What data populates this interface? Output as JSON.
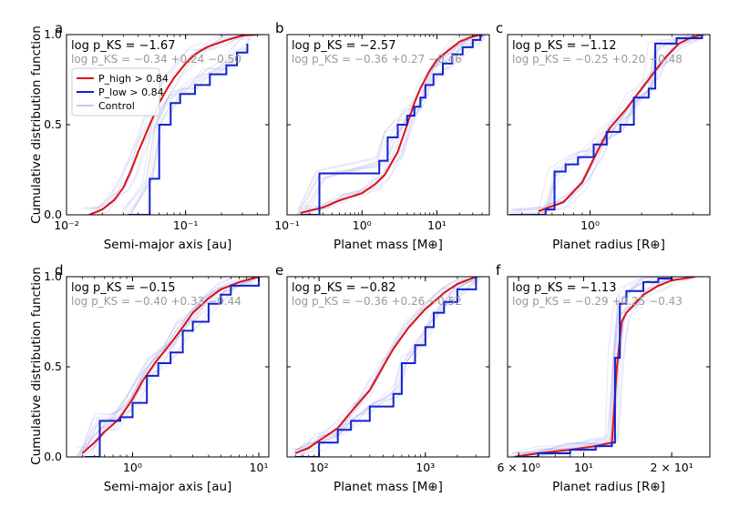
{
  "figure": {
    "ylabel": "Cumulative distribution function",
    "legend": {
      "placement": "upper-left of panel a",
      "entries": [
        {
          "label": "P_high > 0.84",
          "color": "#dd1111"
        },
        {
          "label": "P_low > 0.84",
          "color": "#1122cc"
        },
        {
          "label": "Control",
          "color": "#c8c8ee"
        }
      ]
    },
    "colors": {
      "high": "#dd1111",
      "low": "#1122cc",
      "control": "#8a8ae6",
      "control_stat_text": "#9a9a9a"
    }
  },
  "chart_data": [
    {
      "panel": "a",
      "type": "line",
      "ylabel": "Cumulative distribution function",
      "xlabel": "Semi-major axis [au]",
      "xscale": "log",
      "xlim": [
        0.01,
        0.5
      ],
      "ylim": [
        0,
        1
      ],
      "xticks": [
        {
          "v": 0.01,
          "label": "10⁻²"
        },
        {
          "v": 0.1,
          "label": "10⁻¹"
        }
      ],
      "yticks": [
        {
          "v": 0,
          "label": "0.0"
        },
        {
          "v": 0.5,
          "label": "0.5"
        },
        {
          "v": 1,
          "label": "1.0"
        }
      ],
      "pks": "log p_KS = −1.67",
      "pks_control": "log p_KS = −0.34 +0.24 −0.50",
      "series": [
        {
          "name": "P_high > 0.84",
          "x": [
            0.0155,
            0.02,
            0.025,
            0.03,
            0.035,
            0.04,
            0.05,
            0.06,
            0.07,
            0.08,
            0.1,
            0.12,
            0.15,
            0.2,
            0.25,
            0.3,
            0.4
          ],
          "y": [
            0,
            0.03,
            0.08,
            0.15,
            0.25,
            0.35,
            0.5,
            0.62,
            0.7,
            0.76,
            0.84,
            0.89,
            0.93,
            0.96,
            0.98,
            0.995,
            1.0
          ]
        },
        {
          "name": "P_low > 0.84",
          "x": [
            0.033,
            0.05,
            0.06,
            0.075,
            0.09,
            0.12,
            0.16,
            0.22,
            0.27,
            0.33
          ],
          "y": [
            0,
            0.2,
            0.5,
            0.62,
            0.67,
            0.72,
            0.78,
            0.83,
            0.9,
            0.95
          ]
        }
      ]
    },
    {
      "panel": "b",
      "type": "line",
      "xlabel": "Planet mass [M⊕]",
      "xscale": "log",
      "xlim": [
        0.1,
        50
      ],
      "ylim": [
        0,
        1
      ],
      "xticks": [
        {
          "v": 0.1,
          "label": "10⁻¹"
        },
        {
          "v": 1,
          "label": "10⁰"
        },
        {
          "v": 10,
          "label": "10¹"
        }
      ],
      "yticks": [
        {
          "v": 0,
          "label": ""
        },
        {
          "v": 0.5,
          "label": ""
        },
        {
          "v": 1,
          "label": ""
        }
      ],
      "pks": "log p_KS = −2.57",
      "pks_control": "log p_KS = −0.36 +0.27 −0.46",
      "series": [
        {
          "name": "P_high > 0.84",
          "x": [
            0.15,
            0.3,
            0.5,
            1,
            1.5,
            2,
            3,
            4,
            5,
            6,
            8,
            10,
            15,
            20,
            30,
            40
          ],
          "y": [
            0.01,
            0.04,
            0.08,
            0.12,
            0.17,
            0.22,
            0.35,
            0.5,
            0.62,
            0.7,
            0.8,
            0.86,
            0.92,
            0.96,
            0.99,
            1.0
          ]
        },
        {
          "name": "P_low > 0.84",
          "x": [
            0.15,
            0.27,
            1.7,
            2.2,
            3,
            4,
            5,
            6,
            7,
            9,
            12,
            16,
            22,
            30,
            38
          ],
          "y": [
            0,
            0.23,
            0.3,
            0.43,
            0.5,
            0.55,
            0.6,
            0.65,
            0.72,
            0.78,
            0.84,
            0.89,
            0.93,
            0.97,
            1.0
          ]
        }
      ]
    },
    {
      "panel": "c",
      "type": "line",
      "xlabel": "Planet radius [R⊕]",
      "xscale": "log",
      "xlim": [
        0.33,
        5
      ],
      "ylim": [
        0,
        1
      ],
      "xticks": [
        {
          "v": 1,
          "label": "10⁰"
        }
      ],
      "yticks": [
        {
          "v": 0,
          "label": ""
        },
        {
          "v": 0.5,
          "label": ""
        },
        {
          "v": 1,
          "label": ""
        }
      ],
      "pks": "log p_KS = −1.12",
      "pks_control": "log p_KS = −0.25 +0.20 −0.48",
      "series": [
        {
          "name": "P_high > 0.84",
          "x": [
            0.5,
            0.7,
            0.9,
            1.1,
            1.3,
            1.6,
            2,
            2.4,
            2.8,
            3.3,
            3.8,
            4.5
          ],
          "y": [
            0.02,
            0.07,
            0.18,
            0.35,
            0.48,
            0.58,
            0.7,
            0.8,
            0.88,
            0.95,
            0.98,
            1.0
          ]
        },
        {
          "name": "P_low > 0.84",
          "x": [
            0.34,
            0.55,
            0.62,
            0.72,
            0.85,
            1.05,
            1.25,
            1.5,
            1.8,
            2.2,
            2.4,
            3.2,
            4.5
          ],
          "y": [
            0,
            0.03,
            0.24,
            0.28,
            0.32,
            0.39,
            0.46,
            0.5,
            0.65,
            0.7,
            0.95,
            0.98,
            1.0
          ]
        }
      ]
    },
    {
      "panel": "d",
      "type": "line",
      "ylabel": "Cumulative distribution function",
      "xlabel": "Semi-major axis [au]",
      "xscale": "log",
      "xlim": [
        0.3,
        12
      ],
      "ylim": [
        0,
        1
      ],
      "xticks": [
        {
          "v": 1,
          "label": "10⁰"
        },
        {
          "v": 10,
          "label": "10¹"
        }
      ],
      "yticks": [
        {
          "v": 0,
          "label": "0.0"
        },
        {
          "v": 0.5,
          "label": "0.5"
        },
        {
          "v": 1,
          "label": "1.0"
        }
      ],
      "pks": "log p_KS = −0.15",
      "pks_control": "log p_KS = −0.40 +0.33 −0.44",
      "series": [
        {
          "name": "P_high > 0.84",
          "x": [
            0.4,
            0.5,
            0.6,
            0.7,
            0.8,
            1,
            1.2,
            1.5,
            2,
            2.5,
            3,
            4,
            5,
            7,
            10
          ],
          "y": [
            0.02,
            0.08,
            0.14,
            0.18,
            0.22,
            0.32,
            0.42,
            0.52,
            0.63,
            0.72,
            0.8,
            0.88,
            0.93,
            0.97,
            1.0
          ]
        },
        {
          "name": "P_low > 0.84",
          "x": [
            0.42,
            0.55,
            0.8,
            1,
            1.3,
            1.6,
            2,
            2.5,
            3,
            4,
            5,
            6,
            10
          ],
          "y": [
            0,
            0.2,
            0.22,
            0.3,
            0.45,
            0.52,
            0.58,
            0.7,
            0.75,
            0.85,
            0.9,
            0.95,
            1.0
          ]
        }
      ]
    },
    {
      "panel": "e",
      "type": "line",
      "xlabel": "Planet mass [M⊕]",
      "xscale": "log",
      "xlim": [
        50,
        4000
      ],
      "ylim": [
        0,
        1
      ],
      "xticks": [
        {
          "v": 100,
          "label": "10²"
        },
        {
          "v": 1000,
          "label": "10³"
        }
      ],
      "yticks": [
        {
          "v": 0,
          "label": ""
        },
        {
          "v": 0.5,
          "label": ""
        },
        {
          "v": 1,
          "label": ""
        }
      ],
      "pks": "log p_KS = −0.82",
      "pks_control": "log p_KS = −0.36 +0.26 −0.52",
      "series": [
        {
          "name": "P_high > 0.84",
          "x": [
            60,
            80,
            100,
            150,
            200,
            300,
            400,
            500,
            700,
            1000,
            1500,
            2000,
            3000
          ],
          "y": [
            0.02,
            0.05,
            0.09,
            0.16,
            0.25,
            0.37,
            0.5,
            0.6,
            0.72,
            0.82,
            0.91,
            0.96,
            1.0
          ]
        },
        {
          "name": "P_low > 0.84",
          "x": [
            60,
            100,
            150,
            200,
            300,
            500,
            600,
            800,
            1000,
            1200,
            1500,
            2000,
            3000
          ],
          "y": [
            0,
            0.08,
            0.15,
            0.2,
            0.28,
            0.35,
            0.52,
            0.62,
            0.72,
            0.8,
            0.86,
            0.93,
            1.0
          ]
        }
      ]
    },
    {
      "panel": "f",
      "type": "line",
      "xlabel": "Planet radius [R⊕]",
      "xscale": "log",
      "xlim": [
        5.5,
        27
      ],
      "ylim": [
        0,
        1
      ],
      "xticks": [
        {
          "v": 6,
          "label": "6 × 10⁰"
        },
        {
          "v": 10,
          "label": "10¹"
        },
        {
          "v": 20,
          "label": "2 × 10¹"
        }
      ],
      "yticks": [
        {
          "v": 0,
          "label": ""
        },
        {
          "v": 0.5,
          "label": ""
        },
        {
          "v": 1,
          "label": ""
        }
      ],
      "pks": "log p_KS = −1.13",
      "pks_control": "log p_KS = −0.29 +0.25 −0.43",
      "series": [
        {
          "name": "P_high > 0.84",
          "x": [
            5.8,
            7,
            9,
            11,
            12.5,
            13,
            13.5,
            14,
            15,
            16,
            18,
            20,
            24
          ],
          "y": [
            0,
            0.02,
            0.04,
            0.06,
            0.08,
            0.5,
            0.75,
            0.8,
            0.85,
            0.9,
            0.95,
            0.98,
            1.0
          ]
        },
        {
          "name": "P_low > 0.84",
          "x": [
            5.8,
            7,
            9,
            11,
            12.5,
            12.8,
            13.3,
            14,
            16,
            18,
            20
          ],
          "y": [
            0,
            0.02,
            0.04,
            0.06,
            0.08,
            0.55,
            0.85,
            0.92,
            0.97,
            0.99,
            1.0
          ]
        }
      ]
    }
  ]
}
